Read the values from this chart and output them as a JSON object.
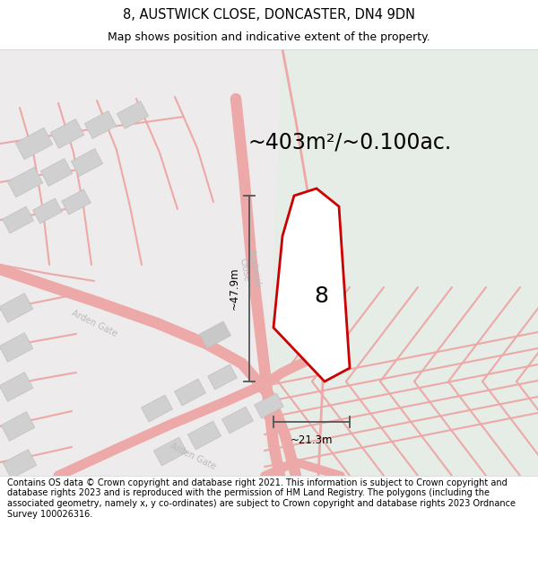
{
  "title": "8, AUSTWICK CLOSE, DONCASTER, DN4 9DN",
  "subtitle": "Map shows position and indicative extent of the property.",
  "area_text": "~403m²/~0.100ac.",
  "label_number": "8",
  "dim_vertical": "~47.9m",
  "dim_horizontal": "~21.3m",
  "footer": "Contains OS data © Crown copyright and database right 2021. This information is subject to Crown copyright and database rights 2023 and is reproduced with the permission of HM Land Registry. The polygons (including the associated geometry, namely x, y co-ordinates) are subject to Crown copyright and database rights 2023 Ordnance Survey 100026316.",
  "bg_color_main": "#edebeb",
  "bg_color_green": "#e6ece6",
  "road_color": "#eda8a8",
  "plot_fill": "#ffffff",
  "plot_edge": "#cc0000",
  "building_fill": "#d0d0d0",
  "dim_color": "#555555",
  "street_color": "#bbbbbb",
  "title_fontsize": 10.5,
  "subtitle_fontsize": 9,
  "area_fontsize": 17,
  "number_fontsize": 18,
  "footer_fontsize": 7,
  "street_fontsize": 7,
  "dim_fontsize": 8.5
}
